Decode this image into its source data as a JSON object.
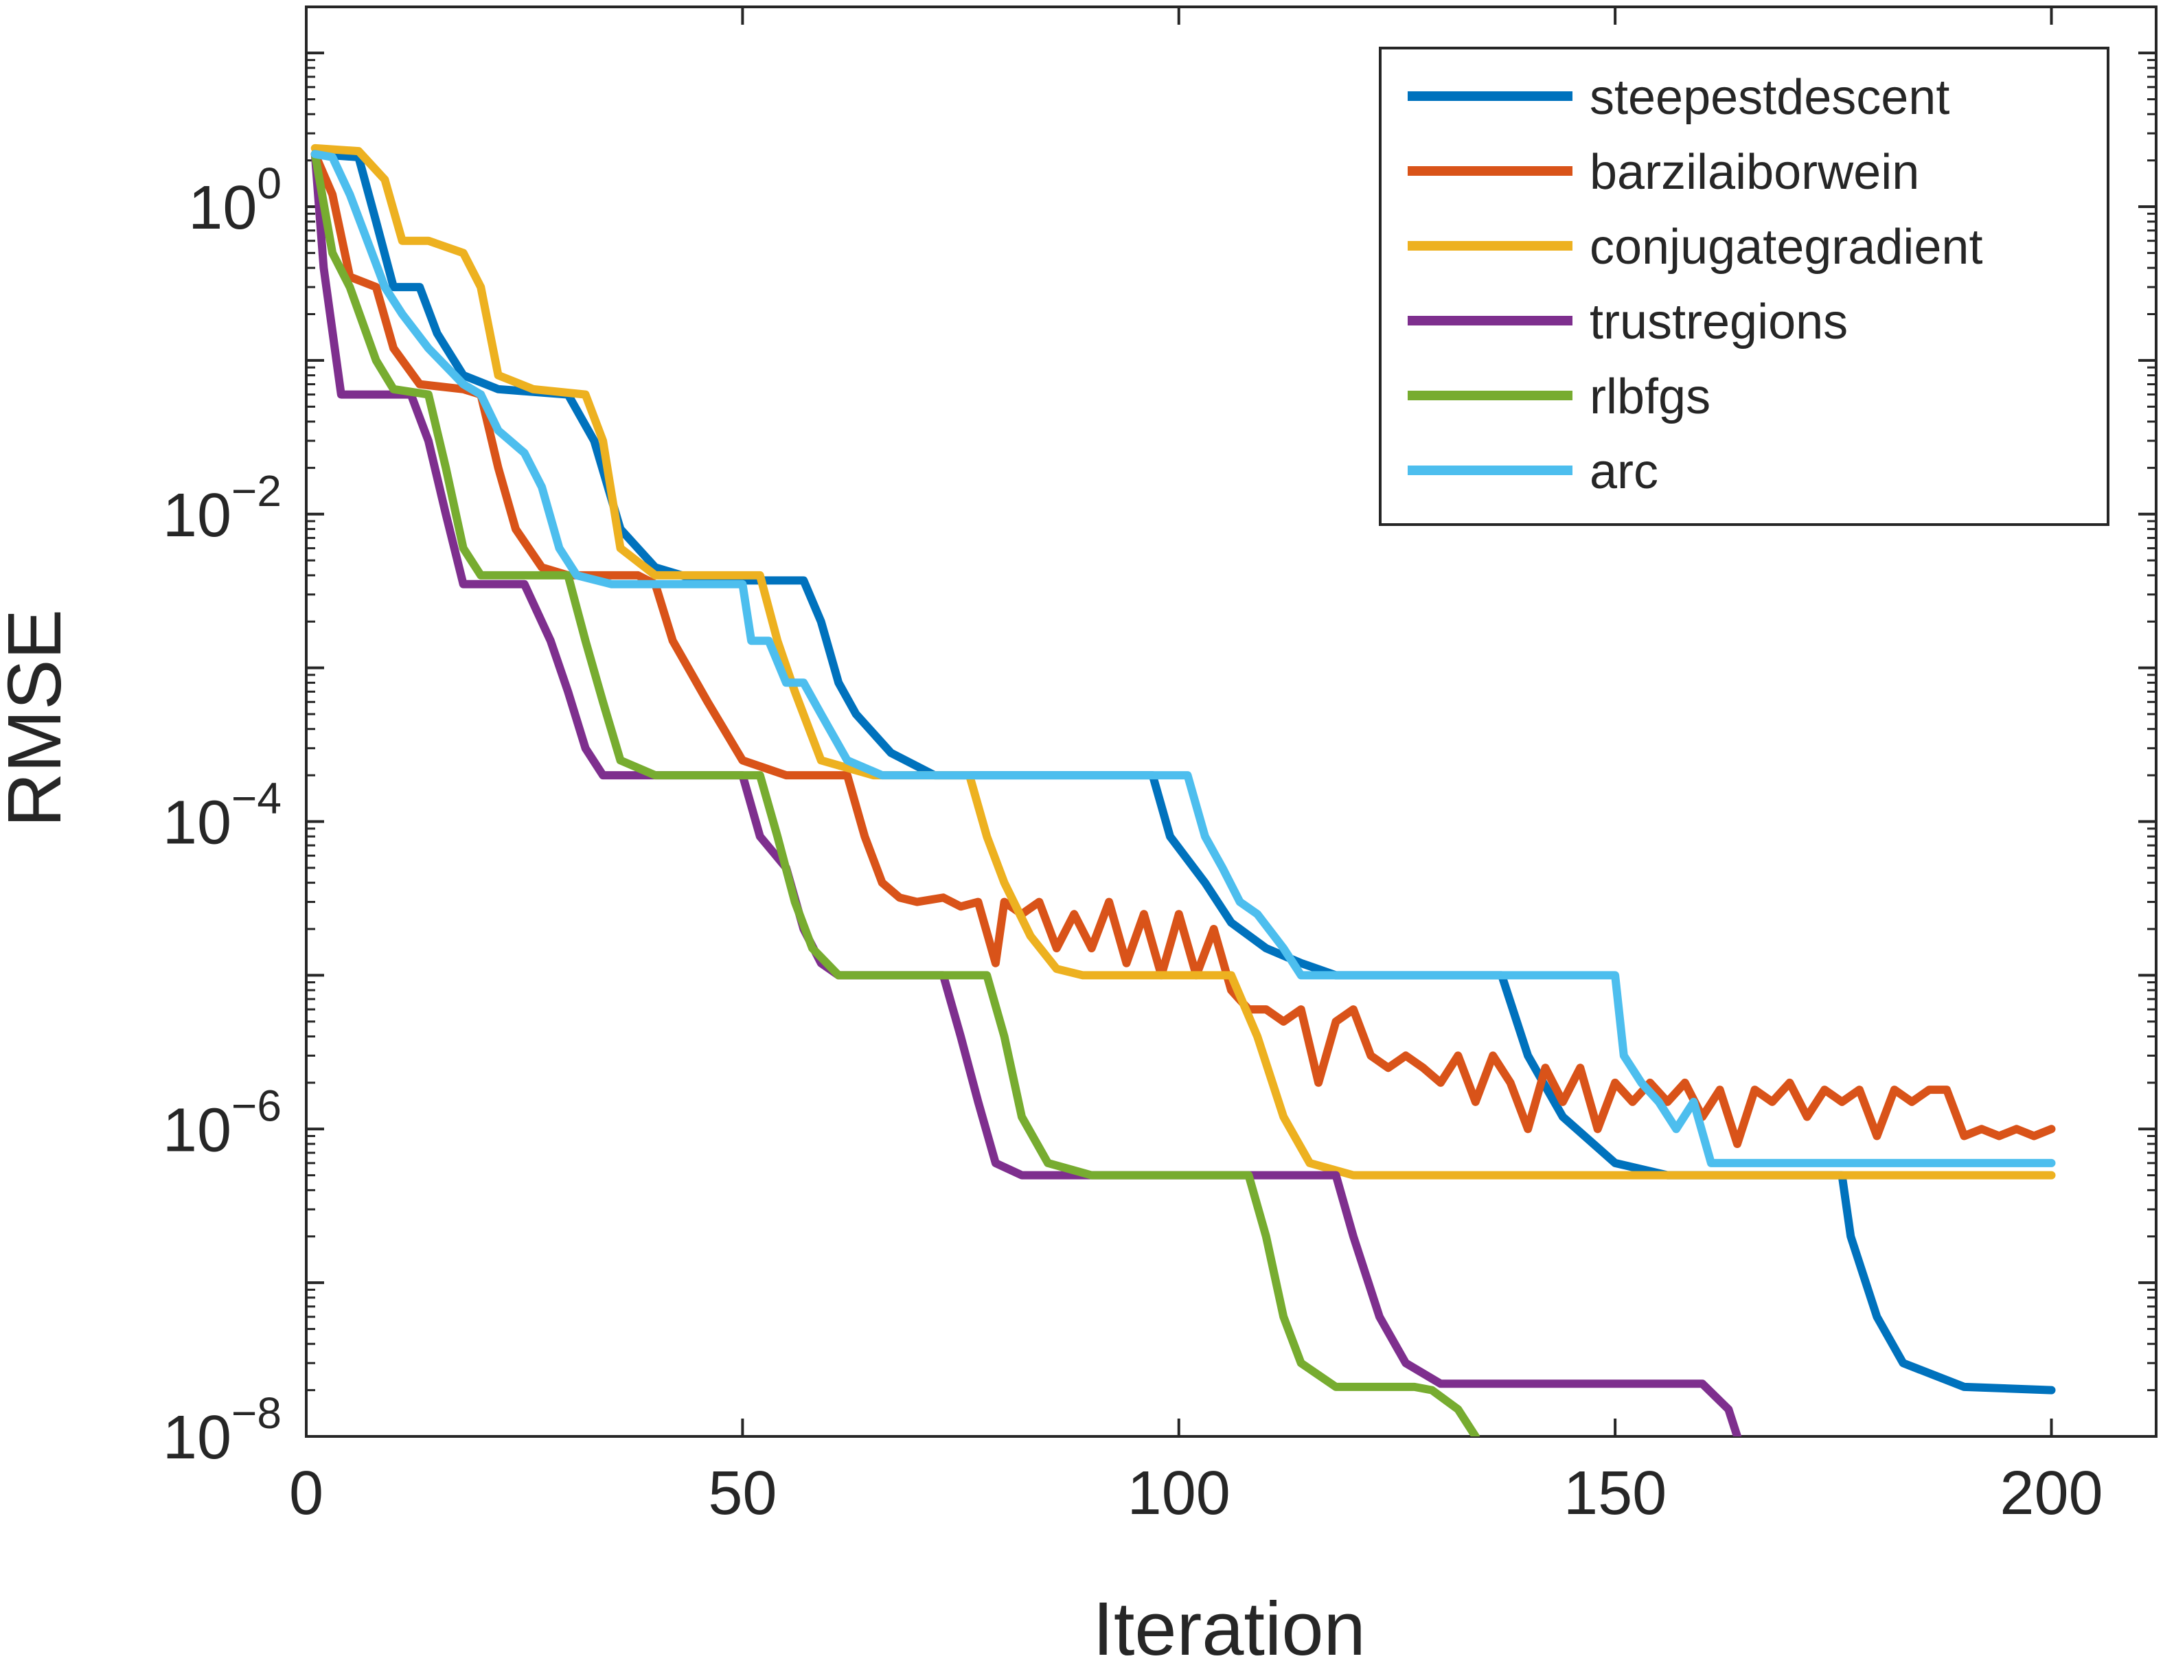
{
  "chart_data": {
    "type": "line",
    "xlabel": "Iteration",
    "ylabel": "RMSE",
    "xlim": [
      0,
      212
    ],
    "ylim_exponent": [
      -8,
      1.3
    ],
    "y_scale": "log",
    "grid": false,
    "legend_position": "top-right",
    "x_ticks": [
      {
        "value": 0,
        "label": "0"
      },
      {
        "value": 50,
        "label": "50"
      },
      {
        "value": 100,
        "label": "100"
      },
      {
        "value": 150,
        "label": "150"
      },
      {
        "value": 200,
        "label": "200"
      }
    ],
    "y_ticks": [
      {
        "exp": 0,
        "base": "10",
        "sup": "0"
      },
      {
        "exp": -2,
        "base": "10",
        "sup": "−2"
      },
      {
        "exp": -4,
        "base": "10",
        "sup": "−4"
      },
      {
        "exp": -6,
        "base": "10",
        "sup": "−6"
      },
      {
        "exp": -8,
        "base": "10",
        "sup": "−8"
      }
    ],
    "series": [
      {
        "name": "steepestdescent",
        "color": "#0072BD",
        "points": [
          [
            1,
            2.2
          ],
          [
            6,
            2.1
          ],
          [
            8,
            0.8
          ],
          [
            10,
            0.3
          ],
          [
            13,
            0.3
          ],
          [
            15,
            0.15
          ],
          [
            18,
            0.08
          ],
          [
            22,
            0.065
          ],
          [
            30,
            0.06
          ],
          [
            33,
            0.03
          ],
          [
            36,
            0.008
          ],
          [
            40,
            0.0045
          ],
          [
            45,
            0.0037
          ],
          [
            57,
            0.0037
          ],
          [
            59,
            0.002
          ],
          [
            61,
            0.0008
          ],
          [
            63,
            0.0005
          ],
          [
            67,
            0.00028
          ],
          [
            72,
            0.0002
          ],
          [
            97,
            0.0002
          ],
          [
            99,
            8e-05
          ],
          [
            103,
            4e-05
          ],
          [
            106,
            2.2e-05
          ],
          [
            110,
            1.5e-05
          ],
          [
            114,
            1.2e-05
          ],
          [
            118,
            1e-05
          ],
          [
            137,
            1e-05
          ],
          [
            140,
            3e-06
          ],
          [
            144,
            1.2e-06
          ],
          [
            150,
            6e-07
          ],
          [
            156,
            5e-07
          ],
          [
            176,
            5e-07
          ],
          [
            177,
            2e-07
          ],
          [
            180,
            6e-08
          ],
          [
            183,
            3e-08
          ],
          [
            190,
            2.1e-08
          ],
          [
            200,
            2e-08
          ]
        ]
      },
      {
        "name": "barzilaiborwein",
        "color": "#D95319",
        "points": [
          [
            1,
            2.2
          ],
          [
            3,
            1.2
          ],
          [
            5,
            0.35
          ],
          [
            8,
            0.3
          ],
          [
            10,
            0.12
          ],
          [
            13,
            0.07
          ],
          [
            18,
            0.065
          ],
          [
            20,
            0.06
          ],
          [
            22,
            0.02
          ],
          [
            24,
            0.008
          ],
          [
            27,
            0.0045
          ],
          [
            30,
            0.004
          ],
          [
            38,
            0.004
          ],
          [
            40,
            0.0035
          ],
          [
            42,
            0.0015
          ],
          [
            46,
            0.0006
          ],
          [
            50,
            0.00025
          ],
          [
            55,
            0.0002
          ],
          [
            62,
            0.0002
          ],
          [
            64,
            8e-05
          ],
          [
            66,
            4e-05
          ],
          [
            68,
            3.2e-05
          ],
          [
            70,
            3e-05
          ],
          [
            73,
            3.2e-05
          ],
          [
            75,
            2.8e-05
          ],
          [
            77,
            3e-05
          ],
          [
            79,
            1.2e-05
          ],
          [
            80,
            3e-05
          ],
          [
            82,
            2.5e-05
          ],
          [
            84,
            3e-05
          ],
          [
            86,
            1.5e-05
          ],
          [
            88,
            2.5e-05
          ],
          [
            90,
            1.5e-05
          ],
          [
            92,
            3e-05
          ],
          [
            94,
            1.2e-05
          ],
          [
            96,
            2.5e-05
          ],
          [
            98,
            1e-05
          ],
          [
            100,
            2.5e-05
          ],
          [
            102,
            1e-05
          ],
          [
            104,
            2e-05
          ],
          [
            106,
            8e-06
          ],
          [
            108,
            6e-06
          ],
          [
            110,
            6e-06
          ],
          [
            112,
            5e-06
          ],
          [
            114,
            6e-06
          ],
          [
            116,
            2e-06
          ],
          [
            118,
            5e-06
          ],
          [
            120,
            6e-06
          ],
          [
            122,
            3e-06
          ],
          [
            124,
            2.5e-06
          ],
          [
            126,
            3e-06
          ],
          [
            128,
            2.5e-06
          ],
          [
            130,
            2e-06
          ],
          [
            132,
            3e-06
          ],
          [
            134,
            1.5e-06
          ],
          [
            136,
            3e-06
          ],
          [
            138,
            2e-06
          ],
          [
            140,
            1e-06
          ],
          [
            142,
            2.5e-06
          ],
          [
            144,
            1.5e-06
          ],
          [
            146,
            2.5e-06
          ],
          [
            148,
            1e-06
          ],
          [
            150,
            2e-06
          ],
          [
            152,
            1.5e-06
          ],
          [
            154,
            2e-06
          ],
          [
            156,
            1.5e-06
          ],
          [
            158,
            2e-06
          ],
          [
            160,
            1.2e-06
          ],
          [
            162,
            1.8e-06
          ],
          [
            164,
            8e-07
          ],
          [
            166,
            1.8e-06
          ],
          [
            168,
            1.5e-06
          ],
          [
            170,
            2e-06
          ],
          [
            172,
            1.2e-06
          ],
          [
            174,
            1.8e-06
          ],
          [
            176,
            1.5e-06
          ],
          [
            178,
            1.8e-06
          ],
          [
            180,
            9e-07
          ],
          [
            182,
            1.8e-06
          ],
          [
            184,
            1.5e-06
          ],
          [
            186,
            1.8e-06
          ],
          [
            188,
            1.8e-06
          ],
          [
            190,
            9e-07
          ],
          [
            192,
            1e-06
          ],
          [
            194,
            9e-07
          ],
          [
            196,
            1e-06
          ],
          [
            198,
            9e-07
          ],
          [
            200,
            1e-06
          ]
        ]
      },
      {
        "name": "conjugategradient",
        "color": "#EDB120",
        "points": [
          [
            1,
            2.4
          ],
          [
            6,
            2.3
          ],
          [
            9,
            1.5
          ],
          [
            11,
            0.6
          ],
          [
            14,
            0.6
          ],
          [
            18,
            0.5
          ],
          [
            20,
            0.3
          ],
          [
            22,
            0.08
          ],
          [
            26,
            0.065
          ],
          [
            32,
            0.06
          ],
          [
            34,
            0.03
          ],
          [
            36,
            0.006
          ],
          [
            40,
            0.004
          ],
          [
            52,
            0.004
          ],
          [
            54,
            0.0015
          ],
          [
            56,
            0.0007
          ],
          [
            59,
            0.00025
          ],
          [
            65,
            0.0002
          ],
          [
            76,
            0.0002
          ],
          [
            78,
            8e-05
          ],
          [
            80,
            4e-05
          ],
          [
            83,
            1.8e-05
          ],
          [
            86,
            1.1e-05
          ],
          [
            89,
            1e-05
          ],
          [
            106,
            1e-05
          ],
          [
            109,
            4e-06
          ],
          [
            112,
            1.2e-06
          ],
          [
            115,
            6e-07
          ],
          [
            120,
            5e-07
          ],
          [
            200,
            5e-07
          ]
        ]
      },
      {
        "name": "trustregions",
        "color": "#7E2F8E",
        "points": [
          [
            1,
            2.2
          ],
          [
            2,
            0.4
          ],
          [
            4,
            0.06
          ],
          [
            7,
            0.06
          ],
          [
            12,
            0.06
          ],
          [
            14,
            0.03
          ],
          [
            16,
            0.01
          ],
          [
            18,
            0.0035
          ],
          [
            25,
            0.0035
          ],
          [
            28,
            0.0015
          ],
          [
            30,
            0.0007
          ],
          [
            32,
            0.0003
          ],
          [
            34,
            0.0002
          ],
          [
            40,
            0.0002
          ],
          [
            50,
            0.0002
          ],
          [
            52,
            8e-05
          ],
          [
            55,
            5e-05
          ],
          [
            57,
            2e-05
          ],
          [
            59,
            1.2e-05
          ],
          [
            61,
            1e-05
          ],
          [
            65,
            1e-05
          ],
          [
            73,
            1e-05
          ],
          [
            75,
            4e-06
          ],
          [
            77,
            1.5e-06
          ],
          [
            79,
            6e-07
          ],
          [
            82,
            5e-07
          ],
          [
            110,
            5e-07
          ],
          [
            118,
            5e-07
          ],
          [
            120,
            2e-07
          ],
          [
            123,
            6e-08
          ],
          [
            126,
            3e-08
          ],
          [
            130,
            2.2e-08
          ],
          [
            160,
            2.2e-08
          ],
          [
            163,
            1.5e-08
          ],
          [
            164,
            1e-08
          ],
          [
            165,
            5e-09
          ]
        ]
      },
      {
        "name": "rlbfgs",
        "color": "#77AC30",
        "points": [
          [
            1,
            2.2
          ],
          [
            3,
            0.5
          ],
          [
            5,
            0.3
          ],
          [
            8,
            0.1
          ],
          [
            10,
            0.065
          ],
          [
            14,
            0.06
          ],
          [
            16,
            0.02
          ],
          [
            18,
            0.006
          ],
          [
            20,
            0.004
          ],
          [
            30,
            0.004
          ],
          [
            32,
            0.0015
          ],
          [
            34,
            0.0006
          ],
          [
            36,
            0.00025
          ],
          [
            40,
            0.0002
          ],
          [
            52,
            0.0002
          ],
          [
            54,
            8e-05
          ],
          [
            56,
            3e-05
          ],
          [
            58,
            1.5e-05
          ],
          [
            61,
            1e-05
          ],
          [
            78,
            1e-05
          ],
          [
            80,
            4e-06
          ],
          [
            82,
            1.2e-06
          ],
          [
            85,
            6e-07
          ],
          [
            90,
            5e-07
          ],
          [
            108,
            5e-07
          ],
          [
            110,
            2e-07
          ],
          [
            112,
            6e-08
          ],
          [
            114,
            3e-08
          ],
          [
            118,
            2.1e-08
          ],
          [
            127,
            2.1e-08
          ],
          [
            129,
            2e-08
          ],
          [
            132,
            1.5e-08
          ],
          [
            134,
            1e-08
          ],
          [
            136,
            5e-09
          ]
        ]
      },
      {
        "name": "arc",
        "color": "#4DBEEE",
        "points": [
          [
            1,
            2.2
          ],
          [
            3,
            2.1
          ],
          [
            5,
            1.2
          ],
          [
            7,
            0.6
          ],
          [
            9,
            0.3
          ],
          [
            11,
            0.2
          ],
          [
            14,
            0.12
          ],
          [
            18,
            0.07
          ],
          [
            20,
            0.06
          ],
          [
            22,
            0.035
          ],
          [
            25,
            0.025
          ],
          [
            27,
            0.015
          ],
          [
            29,
            0.006
          ],
          [
            31,
            0.004
          ],
          [
            35,
            0.0035
          ],
          [
            50,
            0.0035
          ],
          [
            51,
            0.0015
          ],
          [
            53,
            0.0015
          ],
          [
            55,
            0.0008
          ],
          [
            57,
            0.0008
          ],
          [
            59,
            0.0005
          ],
          [
            62,
            0.00025
          ],
          [
            66,
            0.0002
          ],
          [
            101,
            0.0002
          ],
          [
            103,
            8e-05
          ],
          [
            105,
            5e-05
          ],
          [
            107,
            3e-05
          ],
          [
            109,
            2.5e-05
          ],
          [
            112,
            1.5e-05
          ],
          [
            114,
            1e-05
          ],
          [
            118,
            1e-05
          ],
          [
            150,
            1e-05
          ],
          [
            151,
            3e-06
          ],
          [
            153,
            2e-06
          ],
          [
            155,
            1.5e-06
          ],
          [
            157,
            1e-06
          ],
          [
            159,
            1.5e-06
          ],
          [
            161,
            6e-07
          ],
          [
            163,
            6e-07
          ],
          [
            200,
            6e-07
          ]
        ]
      }
    ]
  }
}
